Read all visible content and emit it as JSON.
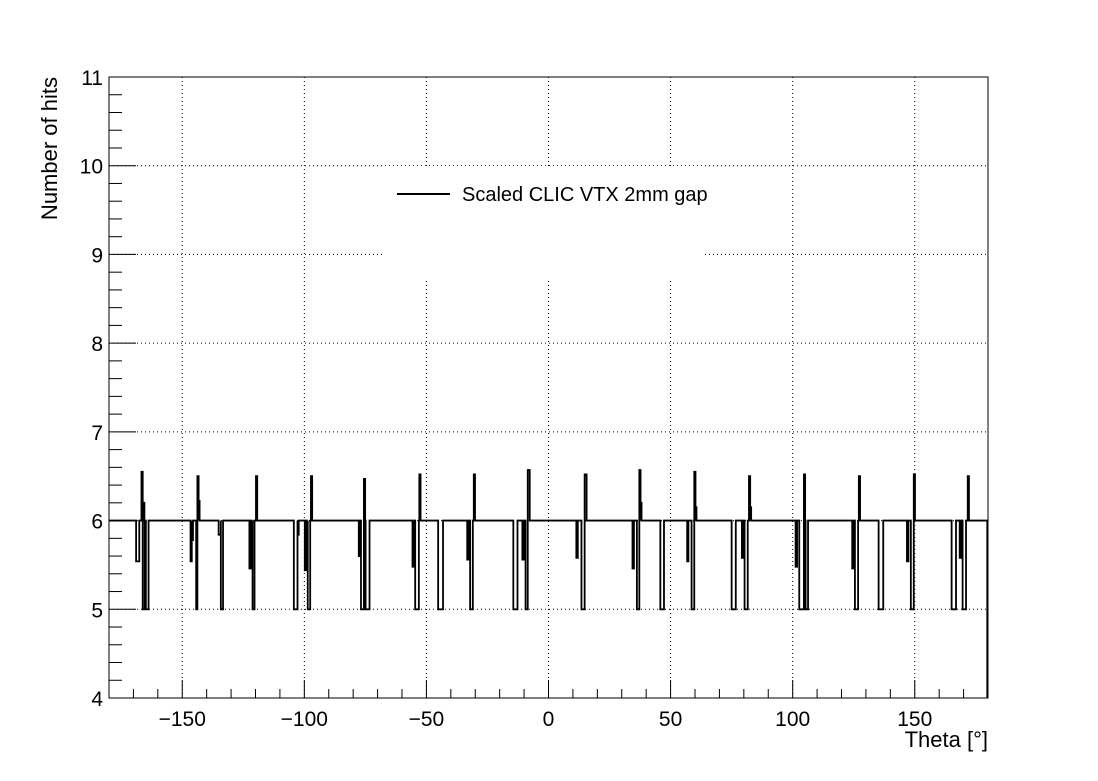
{
  "chart_data": {
    "type": "line",
    "title": "",
    "xlabel": "Theta [°]",
    "ylabel": "Number of hits",
    "xlim": [
      -180,
      180
    ],
    "ylim": [
      4,
      11
    ],
    "xticks": [
      -150,
      -100,
      -50,
      0,
      50,
      100,
      150
    ],
    "xtick_labels": [
      "−150",
      "−100",
      "−50",
      "0",
      "50",
      "100",
      "150"
    ],
    "yticks": [
      4,
      5,
      6,
      7,
      8,
      9,
      10,
      11
    ],
    "ytick_labels": [
      "4",
      "5",
      "6",
      "7",
      "8",
      "9",
      "10",
      "11"
    ],
    "grid": true,
    "legend_position": "top-center",
    "baseline": 6,
    "series": [
      {
        "name": "Scaled CLIC VTX 2mm gap",
        "color": "#000000",
        "segments": [
          {
            "x1": -168.9,
            "x2": -167.6,
            "y": 5.54
          },
          {
            "x1": -166.7,
            "x2": -166.2,
            "y": 6.55
          },
          {
            "x1": -166.2,
            "x2": -165.4,
            "y": 5.0
          },
          {
            "x1": -165.9,
            "x2": -165.5,
            "y": 6.2
          },
          {
            "x1": -164.9,
            "x2": -163.8,
            "y": 5.0
          },
          {
            "x1": -146.6,
            "x2": -146.1,
            "y": 5.54
          },
          {
            "x1": -146.1,
            "x2": -145.6,
            "y": 5.78
          },
          {
            "x1": -144.3,
            "x2": -143.8,
            "y": 5.0
          },
          {
            "x1": -143.8,
            "x2": -143.3,
            "y": 6.5
          },
          {
            "x1": -143.3,
            "x2": -142.9,
            "y": 6.22
          },
          {
            "x1": -135.1,
            "x2": -134.2,
            "y": 5.84
          },
          {
            "x1": -134.2,
            "x2": -133.3,
            "y": 5.0
          },
          {
            "x1": -122.5,
            "x2": -121.9,
            "y": 5.46
          },
          {
            "x1": -121.6,
            "x2": -121.2,
            "y": 5.75
          },
          {
            "x1": -121.2,
            "x2": -120.4,
            "y": 5.0
          },
          {
            "x1": -119.8,
            "x2": -119.3,
            "y": 6.5
          },
          {
            "x1": -104.3,
            "x2": -102.8,
            "y": 5.0
          },
          {
            "x1": -102.8,
            "x2": -102.3,
            "y": 5.84
          },
          {
            "x1": -99.8,
            "x2": -99.2,
            "y": 5.44
          },
          {
            "x1": -99.0,
            "x2": -98.6,
            "y": 5.78
          },
          {
            "x1": -98.6,
            "x2": -97.6,
            "y": 5.0
          },
          {
            "x1": -97.3,
            "x2": -96.8,
            "y": 6.5
          },
          {
            "x1": -77.7,
            "x2": -77.1,
            "y": 5.6
          },
          {
            "x1": -76.8,
            "x2": -75.6,
            "y": 5.0
          },
          {
            "x1": -75.6,
            "x2": -75.1,
            "y": 6.47
          },
          {
            "x1": -74.9,
            "x2": -73.3,
            "y": 5.0
          },
          {
            "x1": -55.7,
            "x2": -55.2,
            "y": 5.48
          },
          {
            "x1": -54.6,
            "x2": -53.1,
            "y": 5.0
          },
          {
            "x1": -52.9,
            "x2": -52.4,
            "y": 6.52
          },
          {
            "x1": -45.2,
            "x2": -43.2,
            "y": 5.0
          },
          {
            "x1": -33.3,
            "x2": -32.7,
            "y": 5.56
          },
          {
            "x1": -32.1,
            "x2": -31.0,
            "y": 5.0
          },
          {
            "x1": -30.6,
            "x2": -30.1,
            "y": 6.52
          },
          {
            "x1": -14.4,
            "x2": -12.7,
            "y": 5.0
          },
          {
            "x1": -10.7,
            "x2": -10.1,
            "y": 5.56
          },
          {
            "x1": -9.4,
            "x2": -8.5,
            "y": 5.0
          },
          {
            "x1": -8.5,
            "x2": -7.7,
            "y": 6.57
          },
          {
            "x1": 11.4,
            "x2": 12.0,
            "y": 5.58
          },
          {
            "x1": 13.5,
            "x2": 14.8,
            "y": 5.0
          },
          {
            "x1": 14.8,
            "x2": 15.6,
            "y": 6.52
          },
          {
            "x1": 34.4,
            "x2": 35.0,
            "y": 5.46
          },
          {
            "x1": 36.2,
            "x2": 37.2,
            "y": 5.0
          },
          {
            "x1": 37.2,
            "x2": 37.7,
            "y": 6.57
          },
          {
            "x1": 37.7,
            "x2": 38.1,
            "y": 6.2
          },
          {
            "x1": 45.8,
            "x2": 47.3,
            "y": 5.0
          },
          {
            "x1": 56.8,
            "x2": 57.3,
            "y": 5.54
          },
          {
            "x1": 58.6,
            "x2": 59.7,
            "y": 5.0
          },
          {
            "x1": 59.7,
            "x2": 60.2,
            "y": 6.55
          },
          {
            "x1": 60.2,
            "x2": 60.6,
            "y": 6.15
          },
          {
            "x1": 75.0,
            "x2": 76.7,
            "y": 5.0
          },
          {
            "x1": 79.2,
            "x2": 79.8,
            "y": 5.58
          },
          {
            "x1": 80.3,
            "x2": 81.6,
            "y": 5.0
          },
          {
            "x1": 82.1,
            "x2": 82.6,
            "y": 6.5
          },
          {
            "x1": 82.6,
            "x2": 83.0,
            "y": 6.15
          },
          {
            "x1": 101.2,
            "x2": 101.8,
            "y": 5.48
          },
          {
            "x1": 102.7,
            "x2": 104.6,
            "y": 5.0
          },
          {
            "x1": 104.6,
            "x2": 105.1,
            "y": 6.52
          },
          {
            "x1": 105.3,
            "x2": 106.3,
            "y": 5.0
          },
          {
            "x1": 124.4,
            "x2": 125.0,
            "y": 5.46
          },
          {
            "x1": 125.5,
            "x2": 126.8,
            "y": 5.0
          },
          {
            "x1": 127.1,
            "x2": 127.6,
            "y": 6.5
          },
          {
            "x1": 135.2,
            "x2": 137.1,
            "y": 5.0
          },
          {
            "x1": 146.8,
            "x2": 147.4,
            "y": 5.54
          },
          {
            "x1": 148.4,
            "x2": 149.6,
            "y": 5.0
          },
          {
            "x1": 149.6,
            "x2": 150.1,
            "y": 6.52
          },
          {
            "x1": 165.1,
            "x2": 166.9,
            "y": 5.0
          },
          {
            "x1": 168.4,
            "x2": 169.0,
            "y": 5.58
          },
          {
            "x1": 169.6,
            "x2": 171.0,
            "y": 5.0
          },
          {
            "x1": 171.7,
            "x2": 172.2,
            "y": 6.5
          }
        ]
      }
    ]
  }
}
